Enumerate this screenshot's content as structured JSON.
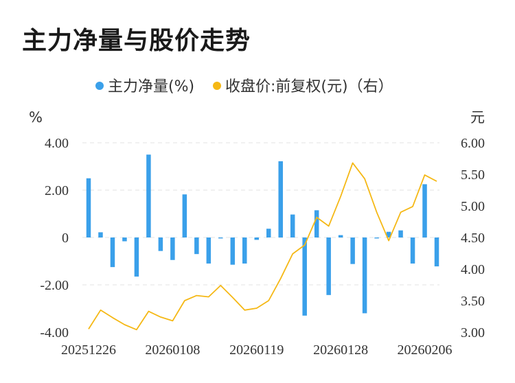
{
  "title": "主力净量与股价走势",
  "chart_data": {
    "type": "bar",
    "legend": {
      "bar_label": "主力净量(%)",
      "line_label": "收盘价:前复权(元)（右）"
    },
    "left_unit": "%",
    "right_unit": "元",
    "left_axis": {
      "ylim": [
        -4,
        4
      ],
      "ticks": [
        4,
        2,
        0,
        -2,
        -4
      ],
      "tick_labels": [
        "4.00",
        "2.00",
        "0",
        "-2.00",
        "-4.00"
      ]
    },
    "right_axis": {
      "ylim": [
        3.0,
        6.0
      ],
      "ticks": [
        6.0,
        5.5,
        5.0,
        4.5,
        4.0,
        3.5,
        3.0
      ],
      "tick_labels": [
        "6.00",
        "5.50",
        "5.00",
        "4.50",
        "4.00",
        "3.50",
        "3.00"
      ]
    },
    "x_tick_labels": [
      "20251226",
      "20260108",
      "20260119",
      "20260128",
      "20260206"
    ],
    "x_tick_indices": [
      0,
      7,
      14,
      21,
      28
    ],
    "series": [
      {
        "name": "主力净量(%)",
        "type": "bar",
        "axis": "left",
        "color": "#3aa0ea",
        "values": [
          2.5,
          0.22,
          -1.25,
          -0.16,
          -1.65,
          3.5,
          -0.57,
          -0.95,
          1.82,
          -0.7,
          -1.1,
          -0.04,
          -1.15,
          -1.1,
          -0.1,
          0.37,
          3.22,
          0.97,
          -3.3,
          1.15,
          -2.43,
          0.1,
          -1.12,
          -3.2,
          -0.04,
          0.24,
          0.3,
          -1.1,
          2.25,
          -1.22
        ]
      },
      {
        "name": "收盘价:前复权(元)（右）",
        "type": "line",
        "axis": "right",
        "color": "#f5b815",
        "values": [
          3.05,
          3.35,
          3.23,
          3.12,
          3.04,
          3.33,
          3.24,
          3.18,
          3.5,
          3.58,
          3.56,
          3.74,
          3.55,
          3.35,
          3.38,
          3.5,
          3.85,
          4.24,
          4.38,
          4.82,
          4.68,
          5.15,
          5.68,
          5.43,
          4.9,
          4.45,
          4.9,
          4.99,
          5.49,
          5.39
        ]
      }
    ],
    "grid": true
  }
}
